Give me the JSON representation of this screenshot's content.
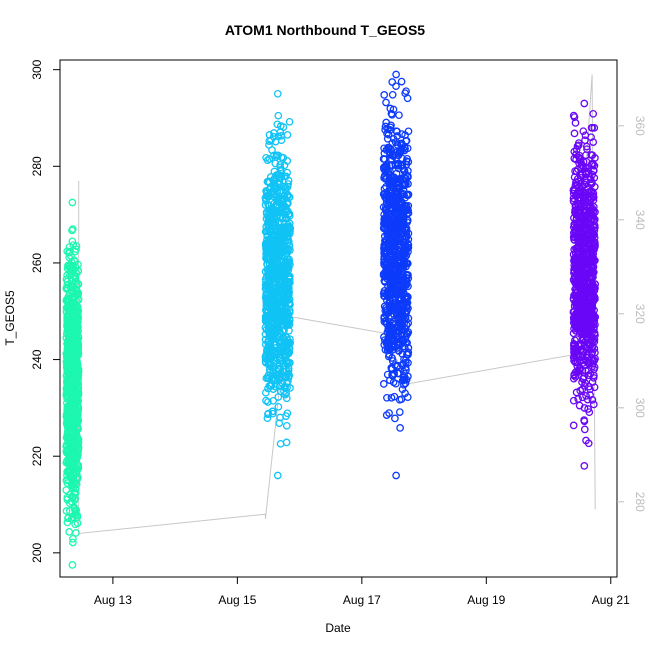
{
  "chart_data": {
    "type": "scatter",
    "title": "ATOM1 Northbound T_GEOS5",
    "xlabel": "Date",
    "ylabel": "T_GEOS5",
    "x_ticks": [
      "Aug 13",
      "Aug 15",
      "Aug 17",
      "Aug 19",
      "Aug 21"
    ],
    "y_ticks": [
      200,
      220,
      240,
      260,
      280,
      300
    ],
    "y_right_ticks": [
      280,
      300,
      320,
      340,
      360
    ],
    "xlim_days": [
      12.15,
      21.1
    ],
    "ylim": [
      195,
      302
    ],
    "y_right_lim": [
      264,
      374
    ],
    "series": [
      {
        "color": "#1df7b0",
        "x_range": [
          12.25,
          12.45
        ],
        "y_min": 197.5,
        "y_max": 272.5,
        "bias": 0.48
      },
      {
        "color": "#11c3f5",
        "x_range": [
          15.45,
          15.85
        ],
        "y_min": 216.0,
        "y_max": 295.0,
        "bias": 0.55
      },
      {
        "color": "#0d3bfb",
        "x_range": [
          17.35,
          17.75
        ],
        "y_min": 216.0,
        "y_max": 299.0,
        "bias": 0.62
      },
      {
        "color": "#6a07f7",
        "x_range": [
          20.4,
          20.75
        ],
        "y_min": 218.0,
        "y_max": 293.0,
        "bias": 0.58
      }
    ],
    "connector_line": {
      "color": "#c8c8c8",
      "points": [
        [
          12.45,
          277
        ],
        [
          12.45,
          204
        ],
        [
          15.45,
          208
        ],
        [
          15.45,
          207
        ],
        [
          15.8,
          249
        ],
        [
          17.35,
          245.5
        ],
        [
          17.75,
          235
        ],
        [
          20.4,
          241
        ],
        [
          20.7,
          299
        ],
        [
          20.75,
          209
        ]
      ]
    }
  }
}
